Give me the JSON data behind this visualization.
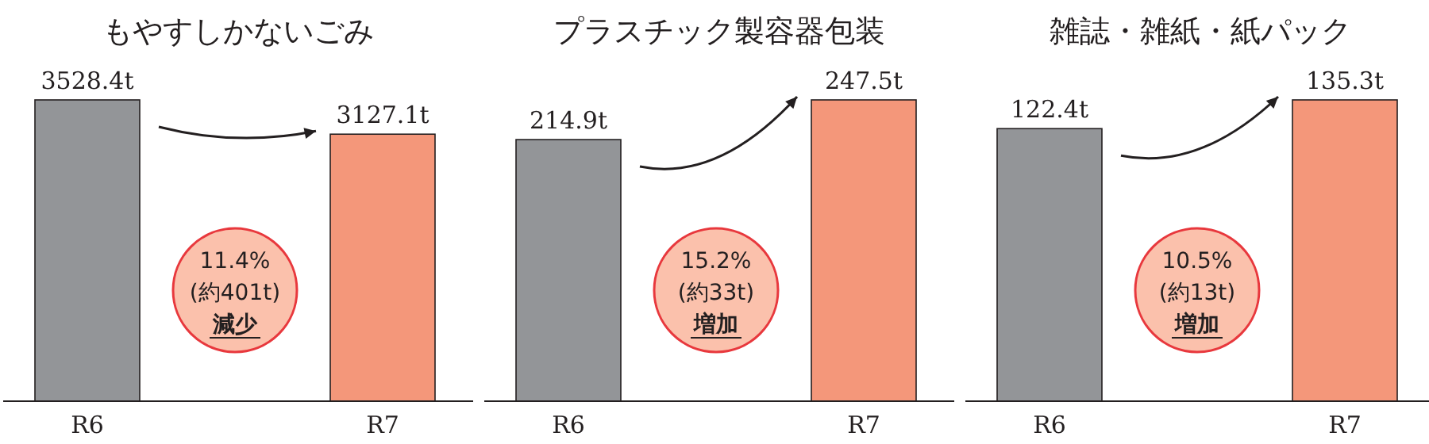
{
  "chart_data": [
    {
      "type": "bar",
      "title": "もやすしかないごみ",
      "categories": [
        "R6",
        "R7"
      ],
      "values": [
        3528.4,
        3127.1
      ],
      "colors": [
        "#939598",
        "#f4977a"
      ],
      "value_labels": [
        "3528.4t",
        "3127.1t"
      ],
      "annotations": [
        "11.4%",
        "(約401t)",
        "減少"
      ]
    },
    {
      "type": "bar",
      "title": "プラスチック製容器包装",
      "categories": [
        "R6",
        "R7"
      ],
      "values": [
        214.9,
        247.5
      ],
      "colors": [
        "#939598",
        "#f4977a"
      ],
      "value_labels": [
        "214.9t",
        "247.5t"
      ],
      "annotations": [
        "15.2%",
        "(約33t)",
        "増加"
      ]
    },
    {
      "type": "bar",
      "title": "雑誌・雑紙・紙パック",
      "categories": [
        "R6",
        "R7"
      ],
      "values": [
        122.4,
        135.3
      ],
      "colors": [
        "#939598",
        "#f4977a"
      ],
      "value_labels": [
        "122.4t",
        "135.3t"
      ],
      "annotations": [
        "10.5%",
        "(約13t)",
        "増加"
      ]
    }
  ]
}
